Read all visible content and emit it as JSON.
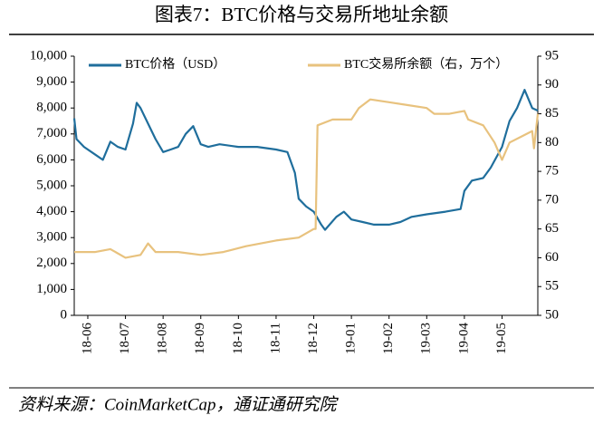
{
  "chart_data": {
    "type": "line",
    "title": "图表7：BTC价格与交易所地址余额",
    "source": "资料来源：CoinMarketCap，通证通研究院",
    "xlim": [
      -0.36,
      11.95
    ],
    "xticks": [
      {
        "value": 0,
        "label": "18-06"
      },
      {
        "value": 1,
        "label": "18-07"
      },
      {
        "value": 2,
        "label": "18-08"
      },
      {
        "value": 3,
        "label": "18-09"
      },
      {
        "value": 4,
        "label": "18-10"
      },
      {
        "value": 5,
        "label": "18-11"
      },
      {
        "value": 6,
        "label": "18-12"
      },
      {
        "value": 7,
        "label": "19-01"
      },
      {
        "value": 8,
        "label": "19-02"
      },
      {
        "value": 9,
        "label": "19-03"
      },
      {
        "value": 10,
        "label": "19-04"
      },
      {
        "value": 11,
        "label": "19-05"
      }
    ],
    "ylim": [
      0,
      10000
    ],
    "yticks": [
      0,
      {
        "value": 1000,
        "label": "1,000"
      },
      {
        "value": 2000,
        "label": "2,000"
      },
      {
        "value": 3000,
        "label": "3,000"
      },
      {
        "value": 4000,
        "label": "4,000"
      },
      {
        "value": 5000,
        "label": "5,000"
      },
      {
        "value": 6000,
        "label": "6,000"
      },
      {
        "value": 7000,
        "label": "7,000"
      },
      {
        "value": 8000,
        "label": "8,000"
      },
      {
        "value": 9000,
        "label": "9,000"
      },
      {
        "value": 10000,
        "label": "10,000"
      }
    ],
    "y2lim": [
      50,
      95
    ],
    "y2ticks": [
      50,
      55,
      60,
      65,
      70,
      75,
      80,
      85,
      90,
      95
    ],
    "series": [
      {
        "name": "BTC价格（USD）",
        "color": "#1f6e9c",
        "x": [
          -0.36,
          -0.3,
          -0.1,
          0.2,
          0.4,
          0.6,
          0.8,
          1.0,
          1.2,
          1.3,
          1.4,
          1.6,
          1.8,
          2.0,
          2.2,
          2.4,
          2.6,
          2.8,
          3.0,
          3.2,
          3.5,
          4.0,
          4.5,
          5.0,
          5.3,
          5.5,
          5.6,
          5.8,
          6.0,
          6.2,
          6.3,
          6.6,
          6.8,
          7.0,
          7.3,
          7.6,
          8.0,
          8.3,
          8.6,
          9.0,
          9.5,
          9.9,
          10.0,
          10.2,
          10.5,
          10.7,
          11.0,
          11.2,
          11.4,
          11.6,
          11.8,
          11.95
        ],
        "values": [
          7600,
          6800,
          6500,
          6200,
          6000,
          6700,
          6500,
          6400,
          7400,
          8200,
          8000,
          7400,
          6800,
          6300,
          6400,
          6500,
          7000,
          7300,
          6600,
          6500,
          6600,
          6500,
          6500,
          6400,
          6300,
          5500,
          4500,
          4200,
          4000,
          3500,
          3300,
          3800,
          4000,
          3700,
          3600,
          3500,
          3500,
          3600,
          3800,
          3900,
          4000,
          4100,
          4800,
          5200,
          5300,
          5700,
          6500,
          7500,
          8000,
          8700,
          8000,
          7900
        ]
      },
      {
        "name": "BTC交易所余额（右，万个）",
        "color": "#e8c27e",
        "axis": "y2",
        "x": [
          -0.36,
          0.2,
          0.6,
          1.0,
          1.4,
          1.6,
          1.8,
          2.4,
          3.0,
          3.6,
          4.2,
          4.6,
          5.0,
          5.6,
          6.0,
          6.05,
          6.1,
          6.5,
          7.0,
          7.2,
          7.5,
          8.0,
          8.5,
          9.0,
          9.2,
          9.6,
          10.0,
          10.1,
          10.5,
          10.8,
          11.0,
          11.2,
          11.5,
          11.8,
          11.85,
          11.95
        ],
        "values": [
          61,
          61,
          61.5,
          60,
          60.5,
          62.5,
          61,
          61,
          60.5,
          61,
          62,
          62.5,
          63,
          63.5,
          65,
          65,
          83,
          84,
          84,
          86,
          87.5,
          87,
          86.5,
          86,
          85,
          85,
          85.5,
          84,
          83,
          80,
          77,
          80,
          81,
          82,
          79,
          85
        ]
      }
    ]
  }
}
